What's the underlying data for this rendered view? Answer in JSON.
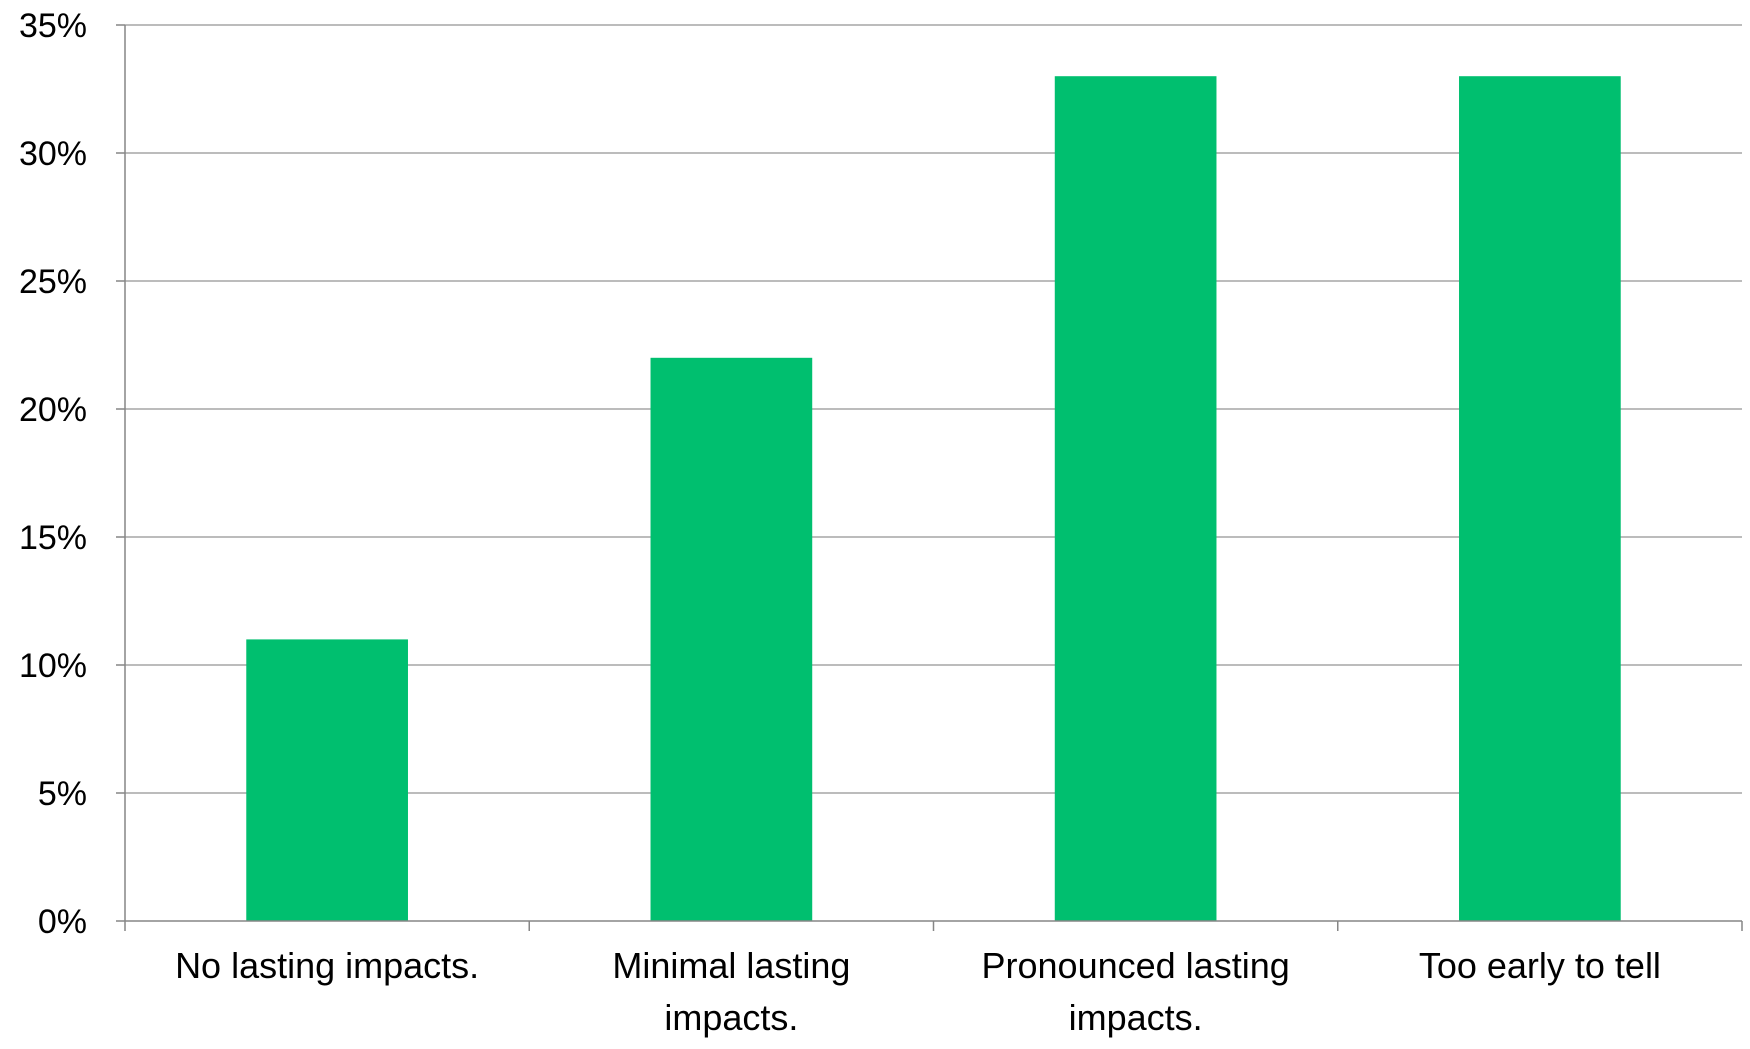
{
  "chart_data": {
    "type": "bar",
    "title": "",
    "xlabel": "",
    "ylabel": "",
    "categories": [
      [
        "No lasting impacts."
      ],
      [
        "Minimal lasting",
        "impacts."
      ],
      [
        "Pronounced lasting",
        "impacts."
      ],
      [
        "Too early to tell"
      ]
    ],
    "values": [
      11,
      22,
      33,
      33
    ],
    "ylim": [
      0,
      35
    ],
    "ytick_step": 5,
    "ytick_format": "percent",
    "grid": true,
    "legend": "none",
    "bar_color": "#00bf6f",
    "gridline_color": "#a6a6a6",
    "axis_color": "#868686"
  }
}
